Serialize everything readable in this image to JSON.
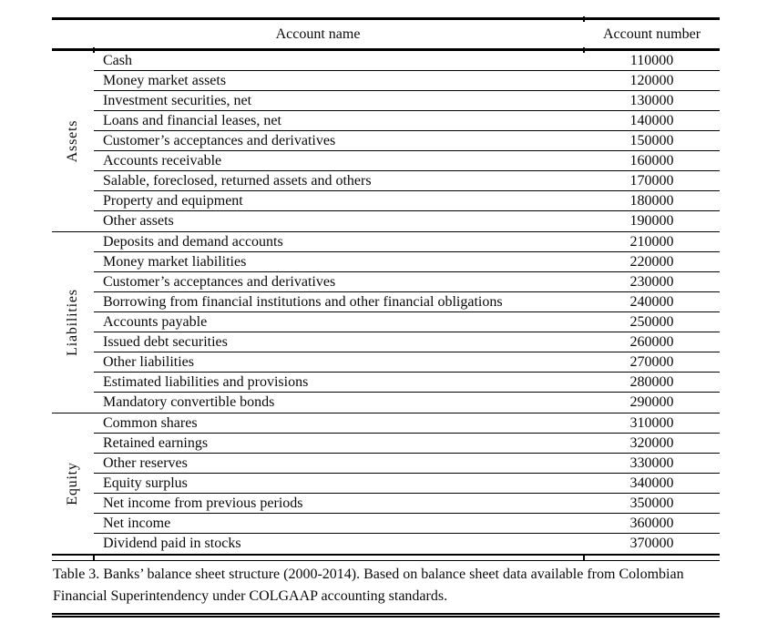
{
  "colors": {
    "ink": "#000000",
    "background": "#ffffff"
  },
  "table": {
    "headers": {
      "account_name": "Account name",
      "account_number": "Account number"
    },
    "groups": [
      {
        "label": "Assets",
        "rows": [
          {
            "name": "Cash",
            "number": "110000"
          },
          {
            "name": "Money market assets",
            "number": "120000"
          },
          {
            "name": "Investment securities, net",
            "number": "130000"
          },
          {
            "name": "Loans and financial leases, net",
            "number": "140000"
          },
          {
            "name": "Customer’s acceptances and derivatives",
            "number": "150000"
          },
          {
            "name": "Accounts receivable",
            "number": "160000"
          },
          {
            "name": "Salable, foreclosed, returned assets and others",
            "number": "170000"
          },
          {
            "name": "Property and equipment",
            "number": "180000"
          },
          {
            "name": "Other assets",
            "number": "190000"
          }
        ]
      },
      {
        "label": "Liabilities",
        "rows": [
          {
            "name": "Deposits and demand accounts",
            "number": "210000"
          },
          {
            "name": "Money market liabilities",
            "number": "220000"
          },
          {
            "name": "Customer’s acceptances and derivatives",
            "number": "230000"
          },
          {
            "name": "Borrowing from financial institutions and other financial obligations",
            "number": "240000"
          },
          {
            "name": "Accounts payable",
            "number": "250000"
          },
          {
            "name": "Issued debt securities",
            "number": "260000"
          },
          {
            "name": "Other liabilities",
            "number": "270000"
          },
          {
            "name": "Estimated liabilities and provisions",
            "number": "280000"
          },
          {
            "name": "Mandatory convertible bonds",
            "number": "290000"
          }
        ]
      },
      {
        "label": "Equity",
        "rows": [
          {
            "name": "Common shares",
            "number": "310000"
          },
          {
            "name": "Retained earnings",
            "number": "320000"
          },
          {
            "name": "Other reserves",
            "number": "330000"
          },
          {
            "name": "Equity surplus",
            "number": "340000"
          },
          {
            "name": "Net income from previous periods",
            "number": "350000"
          },
          {
            "name": "Net income",
            "number": "360000"
          },
          {
            "name": "Dividend paid in stocks",
            "number": "370000"
          }
        ]
      }
    ],
    "caption": "Table 3. Banks’ balance sheet structure (2000-2014). Based on balance sheet data available from Colombian Financial Superintendency under COLGAAP accounting standards."
  }
}
